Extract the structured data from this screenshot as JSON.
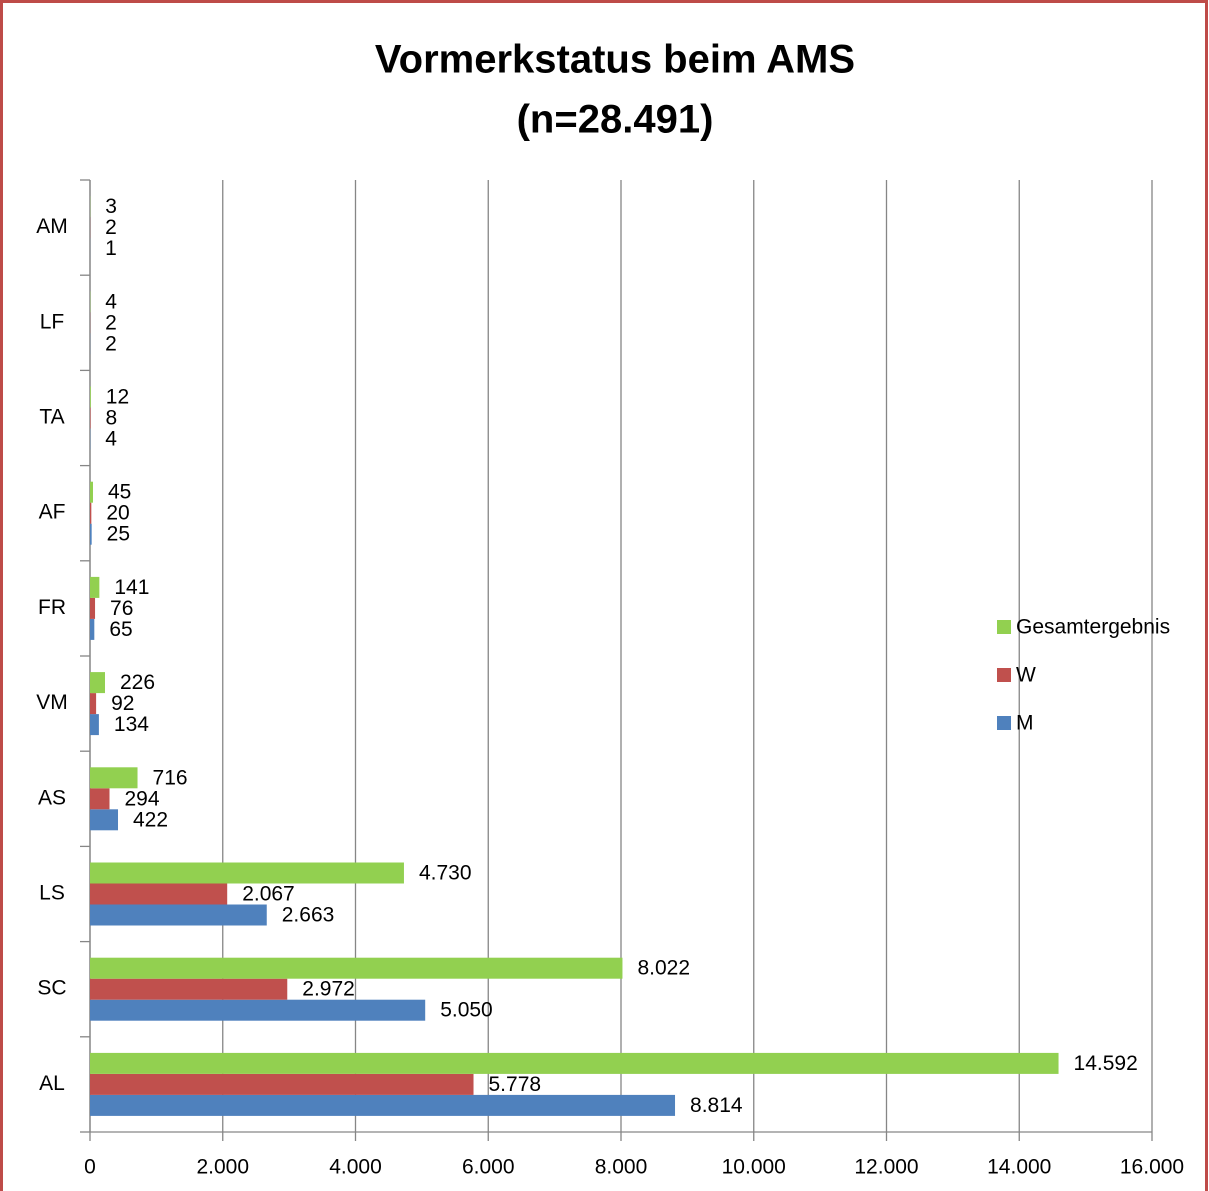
{
  "chart_data": {
    "type": "barh",
    "title": "Vormerkstatus beim AMS",
    "subtitle": "(n=28.491)",
    "categories": [
      "AL",
      "SC",
      "LS",
      "AS",
      "VM",
      "FR",
      "AF",
      "TA",
      "LF",
      "AM"
    ],
    "series": [
      {
        "name": "M",
        "color": "#4f81bd",
        "values": [
          8814,
          5050,
          2663,
          422,
          134,
          65,
          25,
          4,
          2,
          1
        ],
        "value_labels": [
          "8.814",
          "5.050",
          "2.663",
          "422",
          "134",
          "65",
          "25",
          "4",
          "2",
          "1"
        ]
      },
      {
        "name": "W",
        "color": "#c0504d",
        "values": [
          5778,
          2972,
          2067,
          294,
          92,
          76,
          20,
          8,
          2,
          2
        ],
        "value_labels": [
          "5.778",
          "2.972",
          "2.067",
          "294",
          "92",
          "76",
          "20",
          "8",
          "2",
          "2"
        ]
      },
      {
        "name": "Gesamtergebnis",
        "color": "#92d050",
        "values": [
          14592,
          8022,
          4730,
          716,
          226,
          141,
          45,
          12,
          4,
          3
        ],
        "value_labels": [
          "14.592",
          "8.022",
          "4.730",
          "716",
          "226",
          "141",
          "45",
          "12",
          "4",
          "3"
        ]
      }
    ],
    "xlim": [
      0,
      16000
    ],
    "xticks": [
      0,
      {
        "value": 2000,
        "label": "2.000"
      },
      {
        "value": 4000,
        "label": "4.000"
      },
      {
        "value": 6000,
        "label": "6.000"
      },
      {
        "value": 8000,
        "label": "8.000"
      },
      {
        "value": 10000,
        "label": "10.000"
      },
      {
        "value": 12000,
        "label": "12.000"
      },
      {
        "value": 14000,
        "label": "14.000"
      },
      {
        "value": 16000,
        "label": "16.000"
      }
    ],
    "grid": true,
    "legend": "right"
  }
}
